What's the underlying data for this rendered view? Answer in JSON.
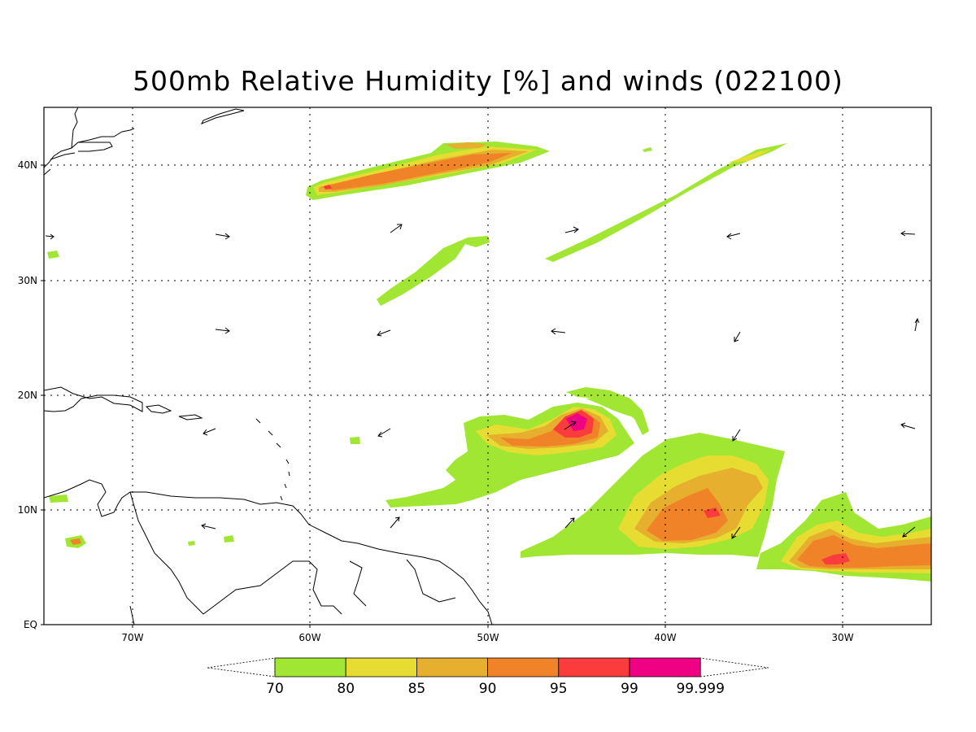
{
  "title": "500mb Relative Humidity [%] and winds (022100)",
  "map": {
    "lon_range": [
      -75,
      -25
    ],
    "lat_range": [
      0,
      45
    ],
    "lon_ticks": [
      "70W",
      "60W",
      "50W",
      "40W",
      "30W"
    ],
    "lat_ticks": [
      "EQ",
      "10N",
      "20N",
      "30N",
      "40N"
    ],
    "grid": "dotted, every 10 degrees"
  },
  "colorbar": {
    "levels": [
      "70",
      "80",
      "85",
      "90",
      "95",
      "99",
      "99.999"
    ],
    "colors": [
      "#a0e632",
      "#e6dc32",
      "#e6af2d",
      "#f08228",
      "#fa3c3c",
      "#f00082"
    ]
  }
}
